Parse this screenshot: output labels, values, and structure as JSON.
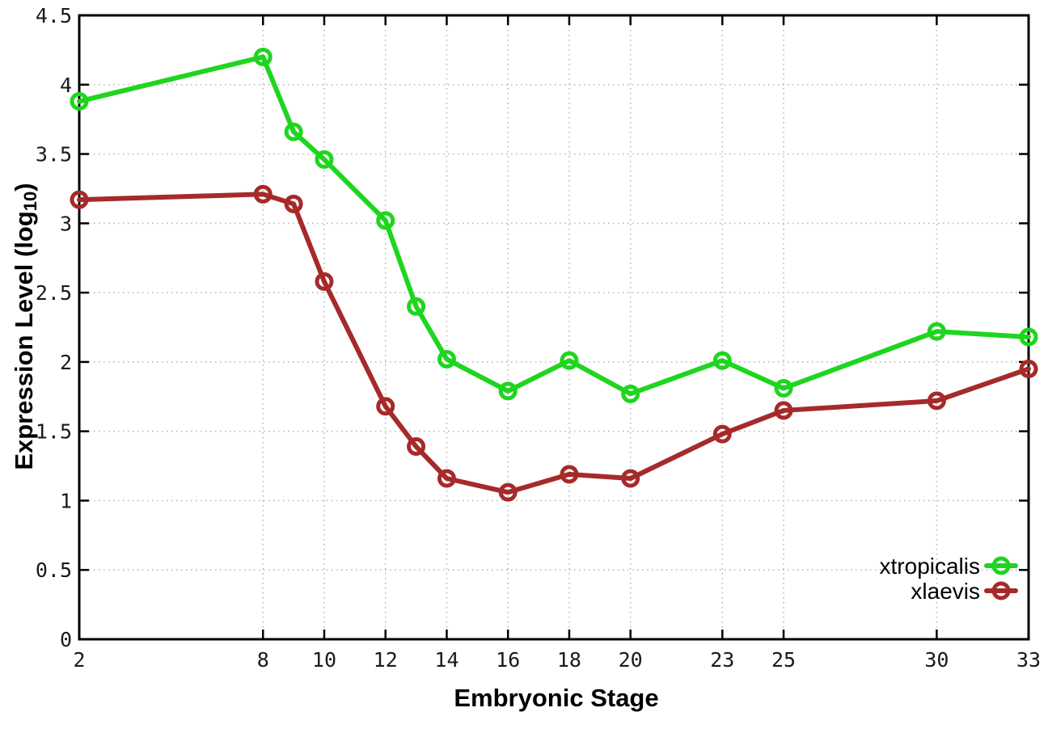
{
  "chart_data": {
    "type": "line",
    "title": "",
    "xlabel": "Embryonic Stage",
    "ylabel": "Expression Level (log10)",
    "ylabel_parts": {
      "prefix": "Expression Level (log",
      "sub": "10",
      "suffix": ")"
    },
    "x": [
      2,
      8,
      9,
      10,
      12,
      13,
      14,
      16,
      18,
      20,
      23,
      25,
      30,
      33
    ],
    "series": [
      {
        "name": "xtropicalis",
        "color": "#1fd51f",
        "values": [
          3.88,
          4.2,
          3.66,
          3.46,
          3.02,
          2.4,
          2.02,
          1.79,
          2.01,
          1.77,
          2.01,
          1.81,
          2.22,
          2.18
        ]
      },
      {
        "name": "xlaevis",
        "color": "#a62a2a",
        "values": [
          3.17,
          3.21,
          3.14,
          2.58,
          1.68,
          1.39,
          1.16,
          1.06,
          1.19,
          1.16,
          1.48,
          1.65,
          1.72,
          1.95
        ]
      }
    ],
    "x_ticks": [
      2,
      8,
      10,
      12,
      14,
      16,
      18,
      20,
      23,
      25,
      30,
      33
    ],
    "y_ticks": [
      0,
      0.5,
      1,
      1.5,
      2,
      2.5,
      3,
      3.5,
      4,
      4.5
    ],
    "xlim": [
      2,
      33
    ],
    "ylim": [
      0,
      4.5
    ],
    "grid": true,
    "legend_position": "bottom-right",
    "colors": {
      "frame": "#000000",
      "grid": "#b8b8b8",
      "background": "#ffffff",
      "tick_text": "#1a1a1a"
    }
  }
}
